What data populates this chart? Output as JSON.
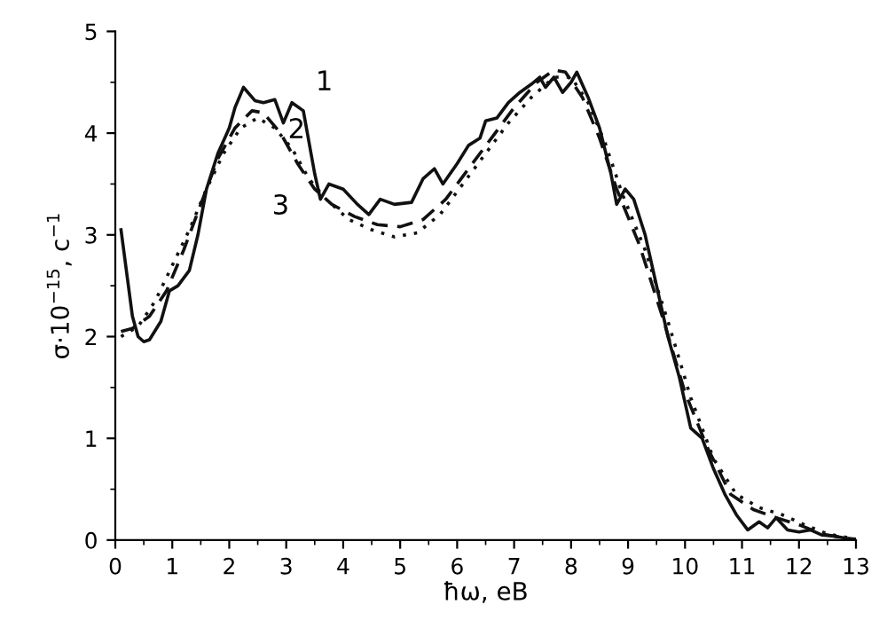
{
  "chart_data": {
    "type": "line",
    "xlabel": "ħω, еВ",
    "ylabel": "σ·10$^{−15}$, с$^{−1}$",
    "xlim": [
      0,
      13
    ],
    "ylim": [
      0,
      5
    ],
    "xticks": [
      0,
      1,
      2,
      3,
      4,
      5,
      6,
      7,
      8,
      9,
      10,
      11,
      12,
      13
    ],
    "yticks": [
      0,
      1,
      2,
      3,
      4,
      5
    ],
    "grid": false,
    "legend": false,
    "marker": "none",
    "series": [
      {
        "color": "#111111",
        "line_style": "solid",
        "x": [
          0.1,
          0.3,
          0.4,
          0.5,
          0.6,
          0.8,
          0.95,
          1.1,
          1.3,
          1.45,
          1.6,
          1.8,
          2.0,
          2.1,
          2.25,
          2.45,
          2.6,
          2.8,
          2.95,
          3.1,
          3.3,
          3.5,
          3.6,
          3.75,
          4.0,
          4.25,
          4.45,
          4.65,
          4.9,
          5.2,
          5.4,
          5.6,
          5.75,
          6.0,
          6.2,
          6.4,
          6.5,
          6.7,
          6.9,
          7.1,
          7.3,
          7.45,
          7.55,
          7.7,
          7.85,
          8.0,
          8.1,
          8.3,
          8.5,
          8.7,
          8.8,
          8.95,
          9.1,
          9.3,
          9.5,
          9.7,
          9.9,
          10.1,
          10.3,
          10.5,
          10.7,
          10.9,
          11.1,
          11.3,
          11.45,
          11.6,
          11.8,
          12.0,
          12.2,
          12.4,
          12.6,
          12.8,
          13.0
        ],
        "values": [
          3.05,
          2.2,
          2.0,
          1.95,
          1.97,
          2.15,
          2.45,
          2.5,
          2.65,
          3.0,
          3.45,
          3.8,
          4.05,
          4.25,
          4.45,
          4.32,
          4.3,
          4.33,
          4.1,
          4.3,
          4.22,
          3.6,
          3.35,
          3.5,
          3.45,
          3.3,
          3.2,
          3.35,
          3.3,
          3.32,
          3.55,
          3.65,
          3.5,
          3.7,
          3.88,
          3.95,
          4.12,
          4.15,
          4.3,
          4.4,
          4.48,
          4.55,
          4.45,
          4.55,
          4.4,
          4.5,
          4.6,
          4.35,
          4.05,
          3.6,
          3.3,
          3.45,
          3.35,
          3.0,
          2.5,
          2.0,
          1.6,
          1.1,
          1.0,
          0.7,
          0.45,
          0.25,
          0.1,
          0.18,
          0.12,
          0.22,
          0.1,
          0.08,
          0.1,
          0.05,
          0.04,
          0.02,
          0.0
        ]
      },
      {
        "color": "#111111",
        "line_style": "dashed",
        "x": [
          0.1,
          0.3,
          0.6,
          0.9,
          1.2,
          1.5,
          1.8,
          2.1,
          2.4,
          2.6,
          2.9,
          3.2,
          3.5,
          3.8,
          4.2,
          4.6,
          5.0,
          5.4,
          5.8,
          6.2,
          6.6,
          7.0,
          7.4,
          7.7,
          7.9,
          8.2,
          8.5,
          8.8,
          9.2,
          9.6,
          10.0,
          10.4,
          10.8,
          11.2,
          11.6,
          12.0,
          12.4,
          12.8,
          13.0
        ],
        "values": [
          2.05,
          2.08,
          2.2,
          2.45,
          2.85,
          3.3,
          3.75,
          4.05,
          4.22,
          4.2,
          4.0,
          3.7,
          3.45,
          3.3,
          3.18,
          3.1,
          3.08,
          3.15,
          3.35,
          3.65,
          3.95,
          4.25,
          4.5,
          4.62,
          4.6,
          4.35,
          3.95,
          3.45,
          2.9,
          2.2,
          1.45,
          0.9,
          0.45,
          0.3,
          0.22,
          0.15,
          0.06,
          0.02,
          0.01
        ]
      },
      {
        "color": "#111111",
        "line_style": "dotted",
        "x": [
          0.1,
          0.4,
          0.7,
          1.0,
          1.3,
          1.6,
          1.9,
          2.2,
          2.5,
          2.8,
          3.1,
          3.4,
          3.7,
          4.1,
          4.5,
          4.9,
          5.3,
          5.7,
          6.1,
          6.5,
          6.9,
          7.3,
          7.7,
          8.0,
          8.3,
          8.6,
          8.9,
          9.3,
          9.7,
          10.1,
          10.5,
          10.9,
          11.3,
          11.7,
          12.1,
          12.5,
          13.0
        ],
        "values": [
          2.0,
          2.1,
          2.35,
          2.7,
          3.05,
          3.45,
          3.8,
          4.05,
          4.15,
          4.05,
          3.85,
          3.55,
          3.35,
          3.15,
          3.05,
          2.98,
          3.02,
          3.2,
          3.5,
          3.8,
          4.1,
          4.35,
          4.55,
          4.55,
          4.3,
          3.9,
          3.4,
          2.85,
          2.15,
          1.4,
          0.8,
          0.45,
          0.32,
          0.25,
          0.15,
          0.06,
          0.01
        ]
      }
    ],
    "annotations": [
      {
        "text": "1",
        "x": 3.3,
        "y": 4.22
      },
      {
        "text": "2",
        "x": 2.9,
        "y": 4.0
      },
      {
        "text": "3",
        "x": 3.4,
        "y": 3.55
      }
    ]
  }
}
